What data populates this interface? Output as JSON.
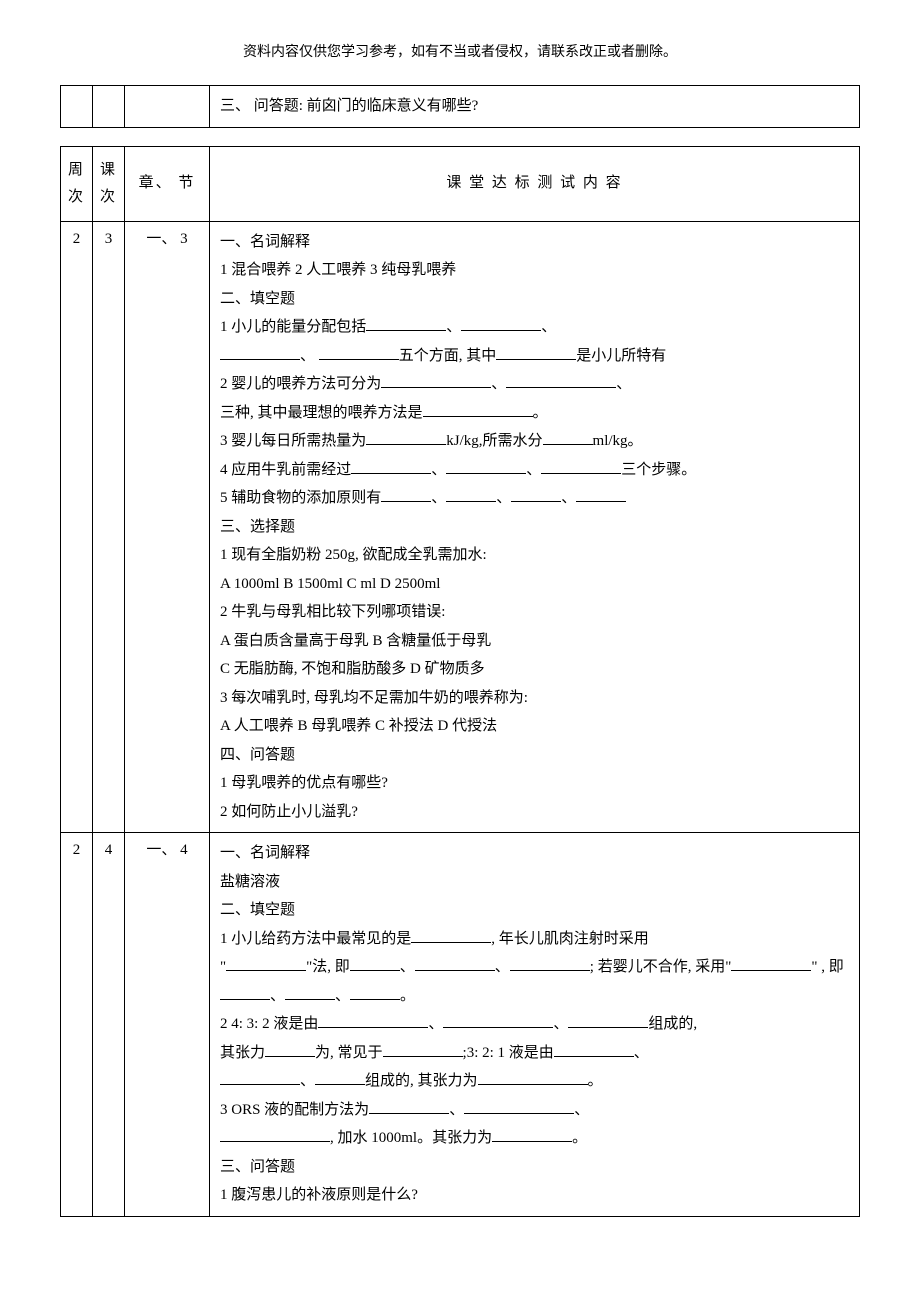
{
  "page": {
    "header_note": "资料内容仅供您学习参考，如有不当或者侵权，请联系改正或者删除。",
    "background_color": "#ffffff",
    "text_color": "#000000",
    "font_family": "SimSun"
  },
  "top_table": {
    "row": {
      "content": "三、  问答题: 前囟门的临床意义有哪些?"
    }
  },
  "main_table": {
    "headers": {
      "week": "周次",
      "lesson": "课次",
      "chapter": "章、 节",
      "content_title": "课 堂 达 标 测 试 内 容"
    },
    "rows": [
      {
        "week": "2",
        "lesson": "3",
        "chapter": "一、 3",
        "sections": {
          "s1_title": "一、名词解释",
          "s1_items": "1 混合喂养   2 人工喂养   3 纯母乳喂养",
          "s2_title": "二、填空题",
          "s2_q1_a": "1 小儿的能量分配包括",
          "s2_q1_b": "五个方面, 其中",
          "s2_q1_c": "是小儿所特有",
          "s2_q2_a": "2 婴儿的喂养方法可分为",
          "s2_q2_b": "三种, 其中最理想的喂养方法是",
          "s2_q3_a": "3 婴儿每日所需热量为",
          "s2_q3_b": "kJ/kg,所需水分",
          "s2_q3_c": "ml/kg。",
          "s2_q4_a": "4 应用牛乳前需经过",
          "s2_q4_b": "三个步骤。",
          "s2_q5_a": "5 辅助食物的添加原则有",
          "s3_title": "三、选择题",
          "s3_q1": "1 现有全脂奶粉 250g, 欲配成全乳需加水:",
          "s3_q1_opts": "A 1000ml     B 1500ml     C  ml     D 2500ml",
          "s3_q2": "2 牛乳与母乳相比较下列哪项错误:",
          "s3_q2_opts1": "A 蛋白质含量高于母乳   B 含糖量低于母乳",
          "s3_q2_opts2": "C 无脂肪酶, 不饱和脂肪酸多   D 矿物质多",
          "s3_q3": "3 每次哺乳时, 母乳均不足需加牛奶的喂养称为:",
          "s3_q3_opts": "A 人工喂养    B 母乳喂养    C 补授法    D 代授法",
          "s4_title": "四、问答题",
          "s4_q1": "1 母乳喂养的优点有哪些?",
          "s4_q2": "2 如何防止小儿溢乳?"
        }
      },
      {
        "week": "2",
        "lesson": "4",
        "chapter": "一、 4",
        "sections": {
          "s1_title": "一、名词解释",
          "s1_items": "盐糖溶液",
          "s2_title": "二、填空题",
          "s2_q1_a": "1 小儿给药方法中最常见的是",
          "s2_q1_b": ", 年长儿肌肉注射时采用",
          "s2_q1_c": "\"",
          "s2_q1_d": "\"法, 即",
          "s2_q1_e": "; 若婴儿不合作, 采用\"",
          "s2_q1_f": "\" , 即",
          "s2_q2_a": "2 4: 3: 2 液是由",
          "s2_q2_b": "组成的,",
          "s2_q2_c": "其张力",
          "s2_q2_d": "为, 常见于",
          "s2_q2_e": ";3: 2: 1 液是由",
          "s2_q2_f": "组成的, 其张力为",
          "s2_q3_a": "3 ORS 液的配制方法为",
          "s2_q3_b": ", 加水 1000ml。其张力为",
          "s3_title": "三、问答题",
          "s3_q1": "1 腹泻患儿的补液原则是什么?"
        }
      }
    ]
  },
  "punct": {
    "dun": "、",
    "period": "。",
    "comma": "、"
  }
}
